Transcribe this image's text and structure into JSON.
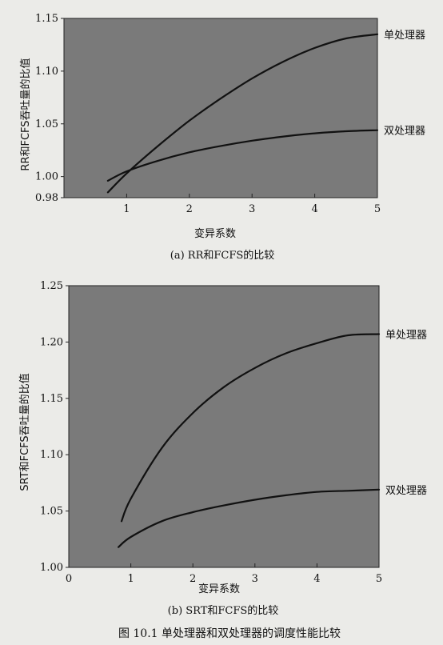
{
  "chart_data": [
    {
      "type": "line",
      "caption": "(a) RR和FCFS的比较",
      "ylabel": "RR和FCFS吞吐量的比值",
      "xlabel": "变异系数",
      "xlim": [
        0,
        5
      ],
      "ylim": [
        0.98,
        1.15
      ],
      "x_ticks": [
        "1",
        "2",
        "3",
        "4",
        "5"
      ],
      "y_ticks": [
        "0.98",
        "1.00",
        "1.05",
        "1.10",
        "1.15"
      ],
      "grid": false,
      "background": "#7a7a7a",
      "series": [
        {
          "name": "单处理器",
          "x": [
            0.7,
            1.0,
            1.5,
            2.0,
            2.5,
            3.0,
            3.5,
            4.0,
            4.5,
            5.0
          ],
          "y": [
            0.985,
            1.003,
            1.029,
            1.053,
            1.074,
            1.093,
            1.109,
            1.122,
            1.131,
            1.135
          ]
        },
        {
          "name": "双处理器",
          "x": [
            0.7,
            1.0,
            1.5,
            2.0,
            2.5,
            3.0,
            3.5,
            4.0,
            4.5,
            5.0
          ],
          "y": [
            0.996,
            1.005,
            1.015,
            1.023,
            1.029,
            1.034,
            1.038,
            1.041,
            1.043,
            1.044
          ]
        }
      ]
    },
    {
      "type": "line",
      "caption": "(b) SRT和FCFS的比较",
      "ylabel": "SRT和FCFS吞吐量的比值",
      "xlabel": "变异系数",
      "xlim": [
        0,
        5
      ],
      "ylim": [
        1.0,
        1.25
      ],
      "x_ticks": [
        "0",
        "1",
        "2",
        "3",
        "4",
        "5"
      ],
      "y_ticks": [
        "1.00",
        "1.05",
        "1.10",
        "1.15",
        "1.20",
        "1.25"
      ],
      "grid": false,
      "background": "#7a7a7a",
      "series": [
        {
          "name": "单处理器",
          "x": [
            0.85,
            1.0,
            1.5,
            2.0,
            2.5,
            3.0,
            3.5,
            4.0,
            4.5,
            5.0
          ],
          "y": [
            1.041,
            1.061,
            1.106,
            1.137,
            1.16,
            1.177,
            1.19,
            1.199,
            1.206,
            1.207
          ]
        },
        {
          "name": "双处理器",
          "x": [
            0.8,
            1.0,
            1.5,
            2.0,
            2.5,
            3.0,
            3.5,
            4.0,
            4.5,
            5.0
          ],
          "y": [
            1.018,
            1.027,
            1.041,
            1.049,
            1.055,
            1.06,
            1.064,
            1.067,
            1.068,
            1.069
          ]
        }
      ]
    }
  ],
  "figure_caption": "图 10.1    单处理器和双处理器的调度性能比较"
}
